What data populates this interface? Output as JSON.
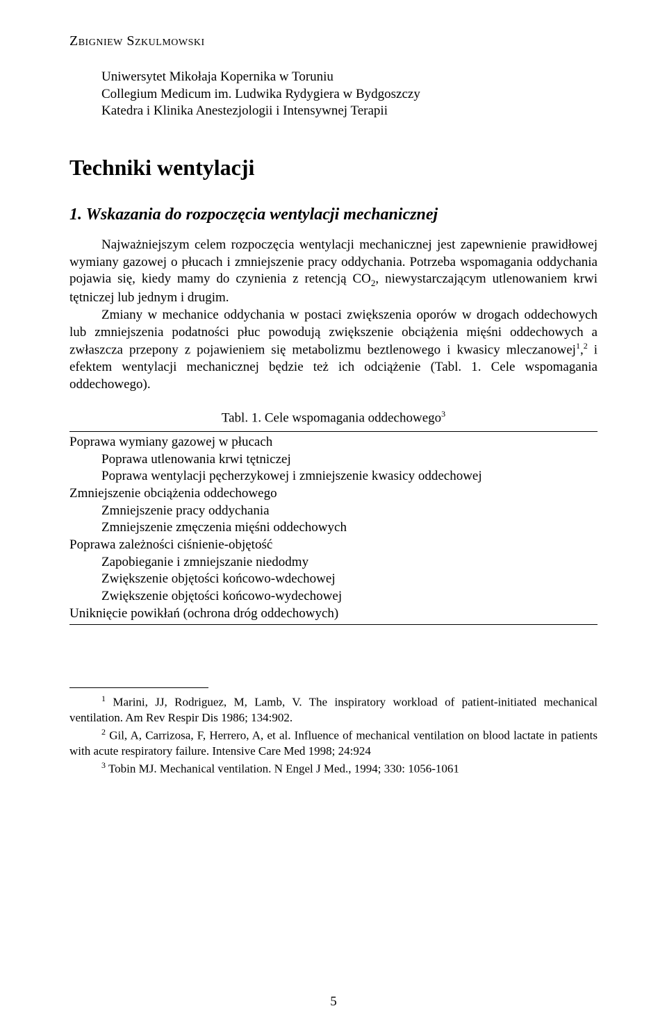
{
  "author": "Zbigniew Szkulmowski",
  "affiliation": {
    "line1": "Uniwersytet Mikołaja Kopernika w Toruniu",
    "line2": "Collegium Medicum im. Ludwika Rydygiera w Bydgoszczy",
    "line3": "Katedra i Klinika Anestezjologii i Intensywnej Terapii"
  },
  "title": "Techniki wentylacji",
  "section_heading": "1. Wskazania do rozpoczęcia wentylacji mechanicznej",
  "para1_a": "Najważniejszym celem rozpoczęcia wentylacji mechanicznej jest zapewnienie prawidłowej wymiany gazowej o płucach i zmniejszenie pracy oddychania. Potrzeba wspomagania oddychania pojawia się, kiedy mamy do czynienia z retencją CO",
  "para1_sub": "2",
  "para1_b": ", niewystarczającym utlenowaniem krwi tętniczej lub jednym i drugim.",
  "para2_a": "Zmiany w mechanice oddychania w postaci zwiększenia oporów w drogach oddechowych lub zmniejszenia podatności płuc powodują zwiększenie obciążenia mięśni oddechowych a zwłaszcza przepony z pojawieniem się metabolizmu beztlenowego i kwasicy mleczanowej",
  "para2_sup1": "1",
  "para2_mid": ",",
  "para2_sup2": "2",
  "para2_b": " i efektem wentylacji mechanicznej będzie też ich odciążenie (Tabl. 1. Cele wspomagania oddechowego).",
  "table_caption_a": "Tabl. 1. Cele wspomagania oddechowego",
  "table_caption_sup": "3",
  "table": {
    "r0": "Poprawa wymiany gazowej w płucach",
    "r1": "Poprawa utlenowania krwi tętniczej",
    "r2": "Poprawa wentylacji pęcherzykowej i zmniejszenie kwasicy oddechowej",
    "r3": "Zmniejszenie obciążenia oddechowego",
    "r4": "Zmniejszenie pracy oddychania",
    "r5": "Zmniejszenie zmęczenia mięśni oddechowych",
    "r6": "Poprawa zależności ciśnienie-objętość",
    "r7": "Zapobieganie i zmniejszanie niedodmy",
    "r8": "Zwiększenie objętości końcowo-wdechowej",
    "r9": "Zwiększenie objętości końcowo-wydechowej",
    "r10": "Uniknięcie powikłań (ochrona dróg oddechowych)"
  },
  "footnotes": {
    "f1_sup": "1",
    "f1": " Marini, JJ, Rodriguez, M, Lamb, V. The inspiratory workload of patient-initiated mechanical ventilation. Am Rev Respir Dis 1986; 134:902.",
    "f2_sup": "2",
    "f2": " Gil, A, Carrizosa, F, Herrero, A, et al. Influence of mechanical ventilation on blood lactate in patients with acute respiratory failure. Intensive Care Med 1998; 24:924",
    "f3_sup": "3",
    "f3": " Tobin MJ. Mechanical ventilation. N Engel J Med., 1994; 330: 1056-1061"
  },
  "page_number": "5"
}
